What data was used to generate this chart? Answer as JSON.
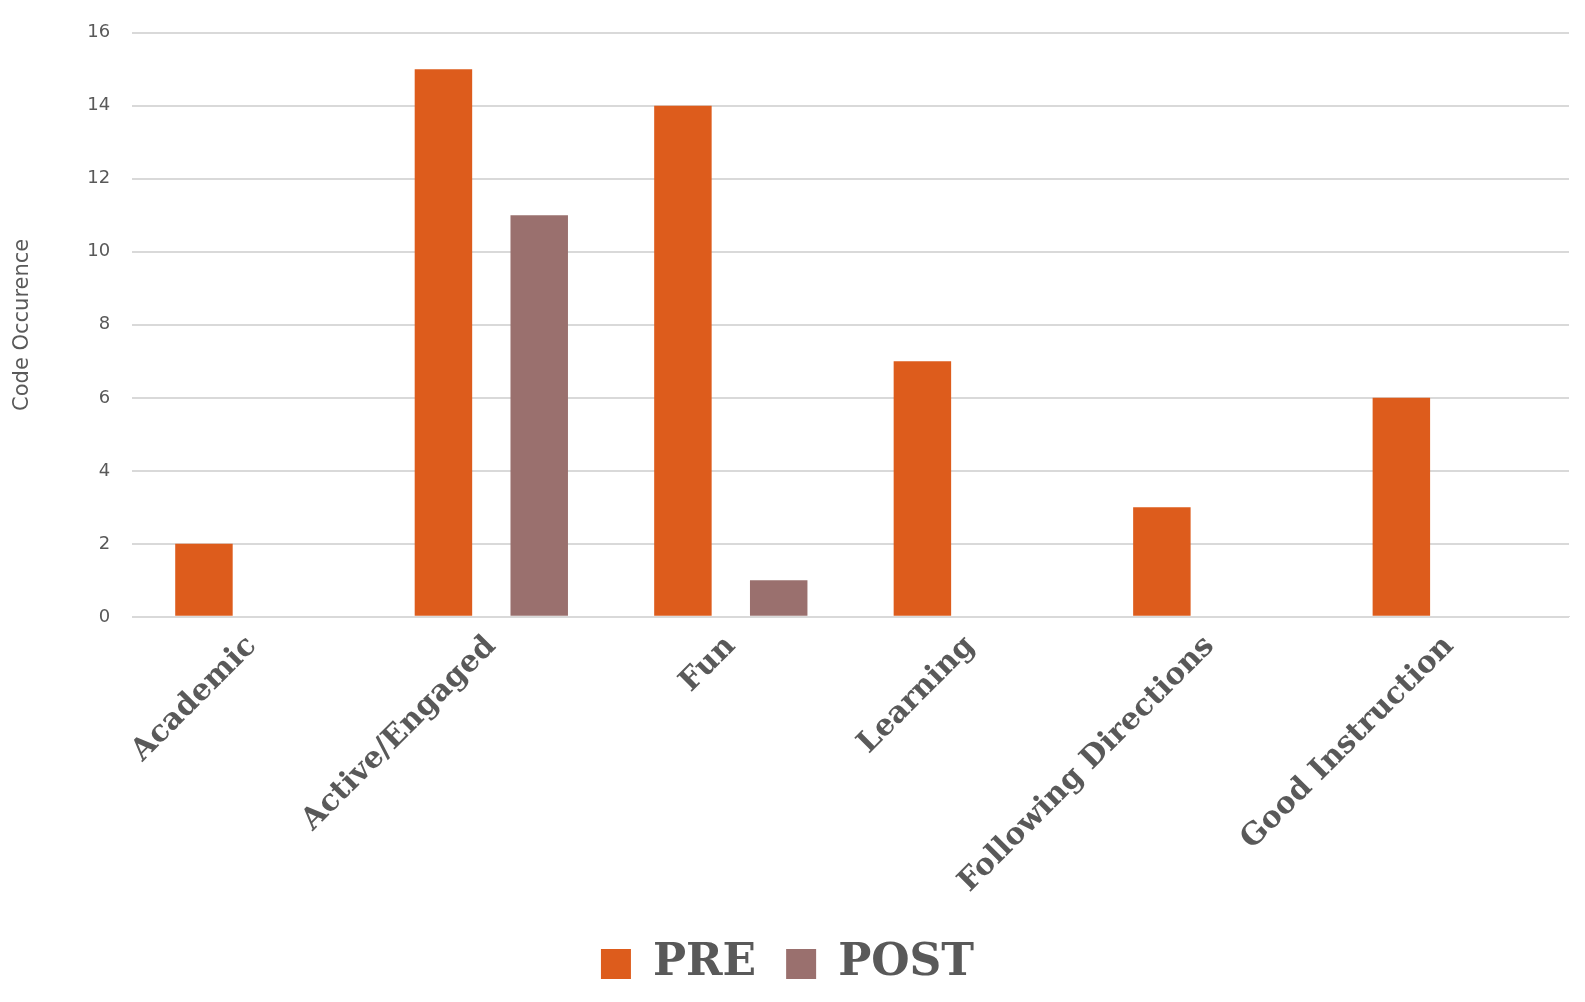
{
  "chart_data": {
    "type": "bar",
    "ylabel": "Code Occurence",
    "categories": [
      "Academic",
      "Active/Engaged",
      "Fun",
      "Learning",
      "Following Directions",
      "Good Instruction"
    ],
    "series": [
      {
        "name": "PRE",
        "color": "#dd5c1c",
        "values": [
          2,
          15,
          14,
          7,
          3,
          6
        ]
      },
      {
        "name": "POST",
        "color": "#9a706e",
        "values": [
          0,
          11,
          1,
          0,
          0,
          0
        ]
      }
    ],
    "ylim": [
      0,
      16
    ],
    "yticks": [
      0,
      2,
      4,
      6,
      8,
      10,
      12,
      14,
      16
    ],
    "grid": "y",
    "legend": "bottom"
  }
}
